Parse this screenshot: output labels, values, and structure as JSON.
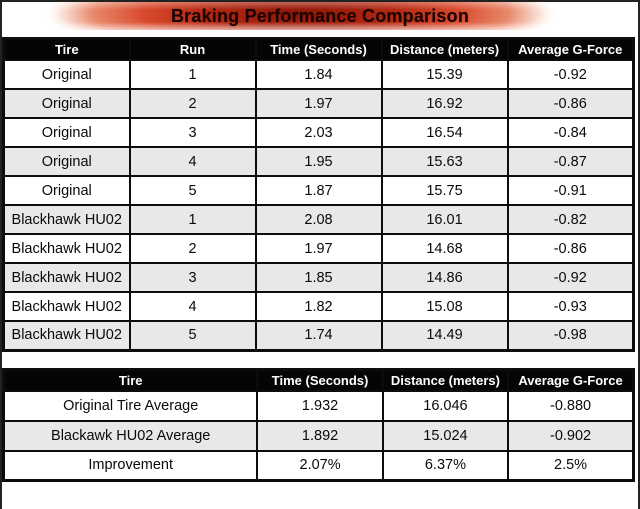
{
  "header": {
    "title": "Braking Performance Comparison"
  },
  "colors": {
    "title_red": "#c23a24",
    "title_dark_red": "#8c1505",
    "title_text": "#1a0300",
    "table_header_bg": "#000000",
    "table_header_text": "#ffffff",
    "row_alt_bg": "#e8e8e8",
    "border": "#0d0d0d"
  },
  "chart_data": [
    {
      "type": "table",
      "title": "Braking Performance Comparison",
      "columns": [
        "Tire",
        "Run",
        "Time (Seconds)",
        "Distance (meters)",
        "Average G-Force"
      ],
      "rows": [
        [
          "Original",
          "1",
          "1.84",
          "15.39",
          "-0.92"
        ],
        [
          "Original",
          "2",
          "1.97",
          "16.92",
          "-0.86"
        ],
        [
          "Original",
          "3",
          "2.03",
          "16.54",
          "-0.84"
        ],
        [
          "Original",
          "4",
          "1.95",
          "15.63",
          "-0.87"
        ],
        [
          "Original",
          "5",
          "1.87",
          "15.75",
          "-0.91"
        ],
        [
          "Blackhawk HU02",
          "1",
          "2.08",
          "16.01",
          "-0.82"
        ],
        [
          "Blackhawk HU02",
          "2",
          "1.97",
          "14.68",
          "-0.86"
        ],
        [
          "Blackhawk HU02",
          "3",
          "1.85",
          "14.86",
          "-0.92"
        ],
        [
          "Blackhawk HU02",
          "4",
          "1.82",
          "15.08",
          "-0.93"
        ],
        [
          "Blackhawk HU02",
          "5",
          "1.74",
          "14.49",
          "-0.98"
        ]
      ]
    },
    {
      "type": "table",
      "columns": [
        "Tire",
        "Time (Seconds)",
        "Distance (meters)",
        "Average G-Force"
      ],
      "rows": [
        [
          "Original Tire Average",
          "1.932",
          "16.046",
          "-0.880"
        ],
        [
          "Blackawk HU02 Average",
          "1.892",
          "15.024",
          "-0.902"
        ],
        [
          "Improvement",
          "2.07%",
          "6.37%",
          "2.5%"
        ]
      ]
    }
  ]
}
